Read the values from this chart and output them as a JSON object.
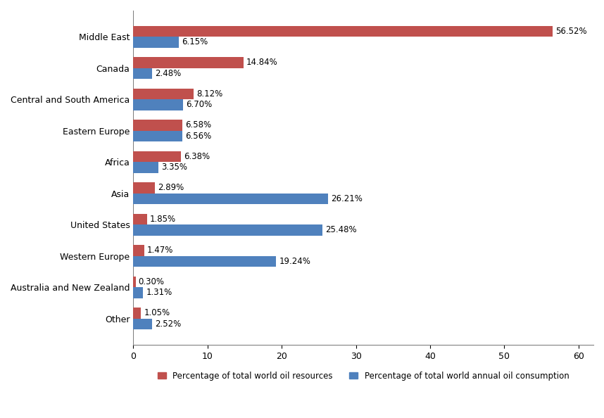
{
  "categories": [
    "Middle East",
    "Canada",
    "Central and South America",
    "Eastern Europe",
    "Africa",
    "Asia",
    "United States",
    "Western Europe",
    "Australia and New Zealand",
    "Other"
  ],
  "resources": [
    56.52,
    14.84,
    8.12,
    6.58,
    6.38,
    2.89,
    1.85,
    1.47,
    0.3,
    1.05
  ],
  "consumption": [
    6.15,
    2.48,
    6.7,
    6.56,
    3.35,
    26.21,
    25.48,
    19.24,
    1.31,
    2.52
  ],
  "resource_color": "#C0504D",
  "consumption_color": "#4F81BD",
  "background_color": "#FFFFFF",
  "legend_resource": "Percentage of total world oil resources",
  "legend_consumption": "Percentage of total world annual oil consumption",
  "bar_height": 0.35,
  "xlim": [
    0,
    62
  ],
  "label_fontsize": 8.5,
  "tick_fontsize": 9,
  "legend_fontsize": 8.5
}
